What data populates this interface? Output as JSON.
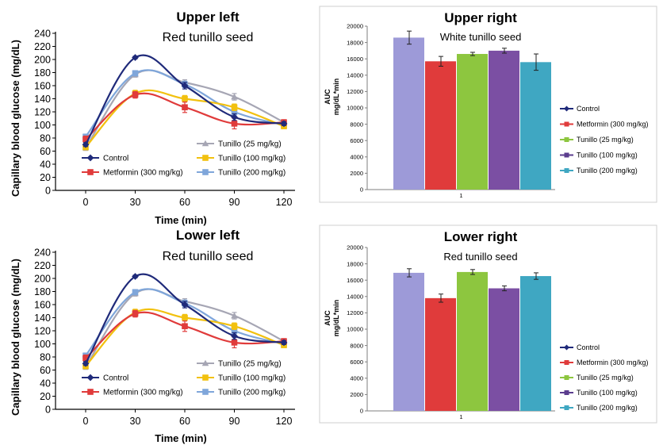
{
  "chart_data": [
    {
      "id": "upper-left",
      "type": "line",
      "title": "Upper left",
      "subtitle": "Red tunillo seed",
      "xlabel": "Time (min)",
      "ylabel": "Capillary blood glucose (mg/dL)",
      "x": [
        0,
        30,
        60,
        90,
        120
      ],
      "xticks": [
        0,
        30,
        60,
        90,
        120
      ],
      "ylim": [
        0,
        240
      ],
      "yticks": [
        0,
        20,
        40,
        60,
        80,
        100,
        120,
        140,
        160,
        180,
        200,
        220,
        240
      ],
      "grid": false,
      "legend_position": "lower-center",
      "series": [
        {
          "name": "Control",
          "color": "#1f2a7a",
          "marker": "diamond",
          "values": [
            70,
            203,
            160,
            112,
            102
          ],
          "errors": [
            3,
            2,
            5,
            5,
            3
          ]
        },
        {
          "name": "Metformin (300 mg/kg)",
          "color": "#e03b3b",
          "marker": "square",
          "values": [
            78,
            146,
            127,
            102,
            104
          ],
          "errors": [
            5,
            5,
            8,
            8,
            4
          ]
        },
        {
          "name": "Tunillo (25 mg/kg)",
          "color": "#a6a6b4",
          "marker": "triangle",
          "values": [
            65,
            177,
            165,
            143,
            104
          ],
          "errors": [
            4,
            4,
            4,
            5,
            3
          ]
        },
        {
          "name": "Tunillo (100 mg/kg)",
          "color": "#f2c10f",
          "marker": "square",
          "values": [
            66,
            148,
            140,
            127,
            98
          ],
          "errors": [
            4,
            5,
            5,
            5,
            3
          ]
        },
        {
          "name": "Tunillo (200 mg/kg)",
          "color": "#7fa6da",
          "marker": "square",
          "values": [
            82,
            179,
            162,
            120,
            100
          ],
          "errors": [
            4,
            4,
            5,
            5,
            3
          ]
        }
      ]
    },
    {
      "id": "upper-right",
      "type": "bar",
      "title": "Upper right",
      "subtitle": "White tunillo seed",
      "xlabel": "",
      "ylabel": "AUC\nmg/dL*min",
      "categories": [
        "1"
      ],
      "ylim": [
        0,
        20000
      ],
      "yticks": [
        0,
        2000,
        4000,
        6000,
        8000,
        10000,
        12000,
        14000,
        16000,
        18000,
        20000
      ],
      "grid": false,
      "legend_position": "right",
      "series": [
        {
          "name": "Control",
          "color": "#9d9ad8",
          "legend_color": "#1f2a7a",
          "values": [
            18600
          ],
          "errors": [
            800
          ]
        },
        {
          "name": "Metformin (300 mg/kg)",
          "color": "#e03b3b",
          "legend_color": "#e03b3b",
          "values": [
            15700
          ],
          "errors": [
            600
          ]
        },
        {
          "name": "Tunillo (25 mg/kg)",
          "color": "#8dc63f",
          "legend_color": "#8dc63f",
          "values": [
            16600
          ],
          "errors": [
            200
          ]
        },
        {
          "name": "Tunillo (100 mg/kg)",
          "color": "#7b4fa3",
          "legend_color": "#5b3d8e",
          "values": [
            17000
          ],
          "errors": [
            300
          ]
        },
        {
          "name": "Tunillo (200 mg/kg)",
          "color": "#3fa7c2",
          "legend_color": "#3fa7c2",
          "values": [
            15600
          ],
          "errors": [
            1000
          ]
        }
      ]
    },
    {
      "id": "lower-left",
      "type": "line",
      "title": "Lower left",
      "subtitle": "Red tunillo seed",
      "xlabel": "Time (min)",
      "ylabel": "Capillary blood glucose (mg/dL)",
      "x": [
        0,
        30,
        60,
        90,
        120
      ],
      "xticks": [
        0,
        30,
        60,
        90,
        120
      ],
      "ylim": [
        0,
        240
      ],
      "yticks": [
        0,
        20,
        40,
        60,
        80,
        100,
        120,
        140,
        160,
        180,
        200,
        220,
        240
      ],
      "grid": false,
      "legend_position": "lower-center",
      "series": [
        {
          "name": "Control",
          "color": "#1f2a7a",
          "marker": "diamond",
          "values": [
            70,
            203,
            160,
            112,
            102
          ],
          "errors": [
            3,
            2,
            5,
            5,
            3
          ]
        },
        {
          "name": "Metformin (300 mg/kg)",
          "color": "#e03b3b",
          "marker": "square",
          "values": [
            78,
            146,
            127,
            102,
            104
          ],
          "errors": [
            5,
            5,
            8,
            8,
            4
          ]
        },
        {
          "name": "Tunillo (25 mg/kg)",
          "color": "#a6a6b4",
          "marker": "triangle",
          "values": [
            65,
            177,
            165,
            143,
            104
          ],
          "errors": [
            4,
            4,
            4,
            5,
            3
          ]
        },
        {
          "name": "Tunillo (100 mg/kg)",
          "color": "#f2c10f",
          "marker": "square",
          "values": [
            66,
            148,
            140,
            127,
            98
          ],
          "errors": [
            4,
            5,
            5,
            5,
            3
          ]
        },
        {
          "name": "Tunillo (200 mg/kg)",
          "color": "#7fa6da",
          "marker": "square",
          "values": [
            82,
            179,
            162,
            120,
            100
          ],
          "errors": [
            4,
            4,
            5,
            5,
            3
          ]
        }
      ]
    },
    {
      "id": "lower-right",
      "type": "bar",
      "title": "Lower right",
      "subtitle": "Red tunillo seed",
      "xlabel": "",
      "ylabel": "AUC\nmg/dL*min",
      "categories": [
        "1"
      ],
      "ylim": [
        0,
        20000
      ],
      "yticks": [
        0,
        2000,
        4000,
        6000,
        8000,
        10000,
        12000,
        14000,
        16000,
        18000,
        20000
      ],
      "grid": false,
      "legend_position": "right",
      "series": [
        {
          "name": "Control",
          "color": "#9d9ad8",
          "legend_color": "#1f2a7a",
          "values": [
            16900
          ],
          "errors": [
            500
          ]
        },
        {
          "name": "Metformin (300 mg/kg)",
          "color": "#e03b3b",
          "legend_color": "#e03b3b",
          "values": [
            13800
          ],
          "errors": [
            500
          ]
        },
        {
          "name": "Tunillo (25 mg/kg)",
          "color": "#8dc63f",
          "legend_color": "#8dc63f",
          "values": [
            17000
          ],
          "errors": [
            300
          ]
        },
        {
          "name": "Tunillo (100 mg/kg)",
          "color": "#7b4fa3",
          "legend_color": "#5b3d8e",
          "values": [
            15000
          ],
          "errors": [
            300
          ]
        },
        {
          "name": "Tunillo (200 mg/kg)",
          "color": "#3fa7c2",
          "legend_color": "#3fa7c2",
          "values": [
            16500
          ],
          "errors": [
            400
          ]
        }
      ]
    }
  ]
}
